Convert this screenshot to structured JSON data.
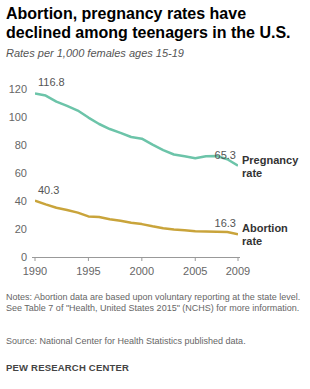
{
  "chart_data": {
    "type": "line",
    "title": "Abortion, pregnancy rates have declined among teenagers in the U.S.",
    "subtitle": "Rates per 1,000 females ages 15-19",
    "notes": "Notes: Abortion data are based upon voluntary reporting at the state level. See Table 7 of \"Health, United States 2015\" (NCHS) for more information.",
    "source": "Source: National Center for Health Statistics published data.",
    "credit": "PEW RESEARCH CENTER",
    "x": [
      1990,
      1991,
      1992,
      1993,
      1994,
      1995,
      1996,
      1997,
      1998,
      1999,
      2000,
      2001,
      2002,
      2003,
      2004,
      2005,
      2006,
      2007,
      2008,
      2009
    ],
    "xlim": [
      1990,
      2009
    ],
    "xticks": [
      1990,
      1995,
      2000,
      2005,
      2009
    ],
    "ylim": [
      0,
      120
    ],
    "yticks": [
      0,
      20,
      40,
      60,
      80,
      100,
      120
    ],
    "grid": false,
    "data_labels": true,
    "series": [
      {
        "name": "Pregnancy rate",
        "color": "#6cc4a9",
        "values": [
          116.8,
          115.3,
          111.0,
          108.0,
          104.6,
          99.6,
          95.0,
          91.4,
          88.7,
          85.7,
          84.5,
          80.3,
          76.4,
          73.2,
          71.9,
          70.6,
          72.0,
          72.1,
          69.8,
          65.3
        ],
        "value_labels": [
          "116.8",
          null,
          null,
          null,
          null,
          null,
          null,
          null,
          null,
          null,
          null,
          null,
          null,
          null,
          null,
          null,
          null,
          null,
          null,
          "65.3"
        ]
      },
      {
        "name": "Abortion rate",
        "color": "#c9a43b",
        "values": [
          40.3,
          37.6,
          35.2,
          33.6,
          31.7,
          29.0,
          28.5,
          27.0,
          25.9,
          24.5,
          23.5,
          21.9,
          20.5,
          19.7,
          19.1,
          18.4,
          18.3,
          18.1,
          17.8,
          16.3
        ],
        "value_labels": [
          "40.3",
          null,
          null,
          null,
          null,
          null,
          null,
          null,
          null,
          null,
          null,
          null,
          null,
          null,
          null,
          null,
          null,
          null,
          null,
          "16.3"
        ]
      }
    ]
  }
}
